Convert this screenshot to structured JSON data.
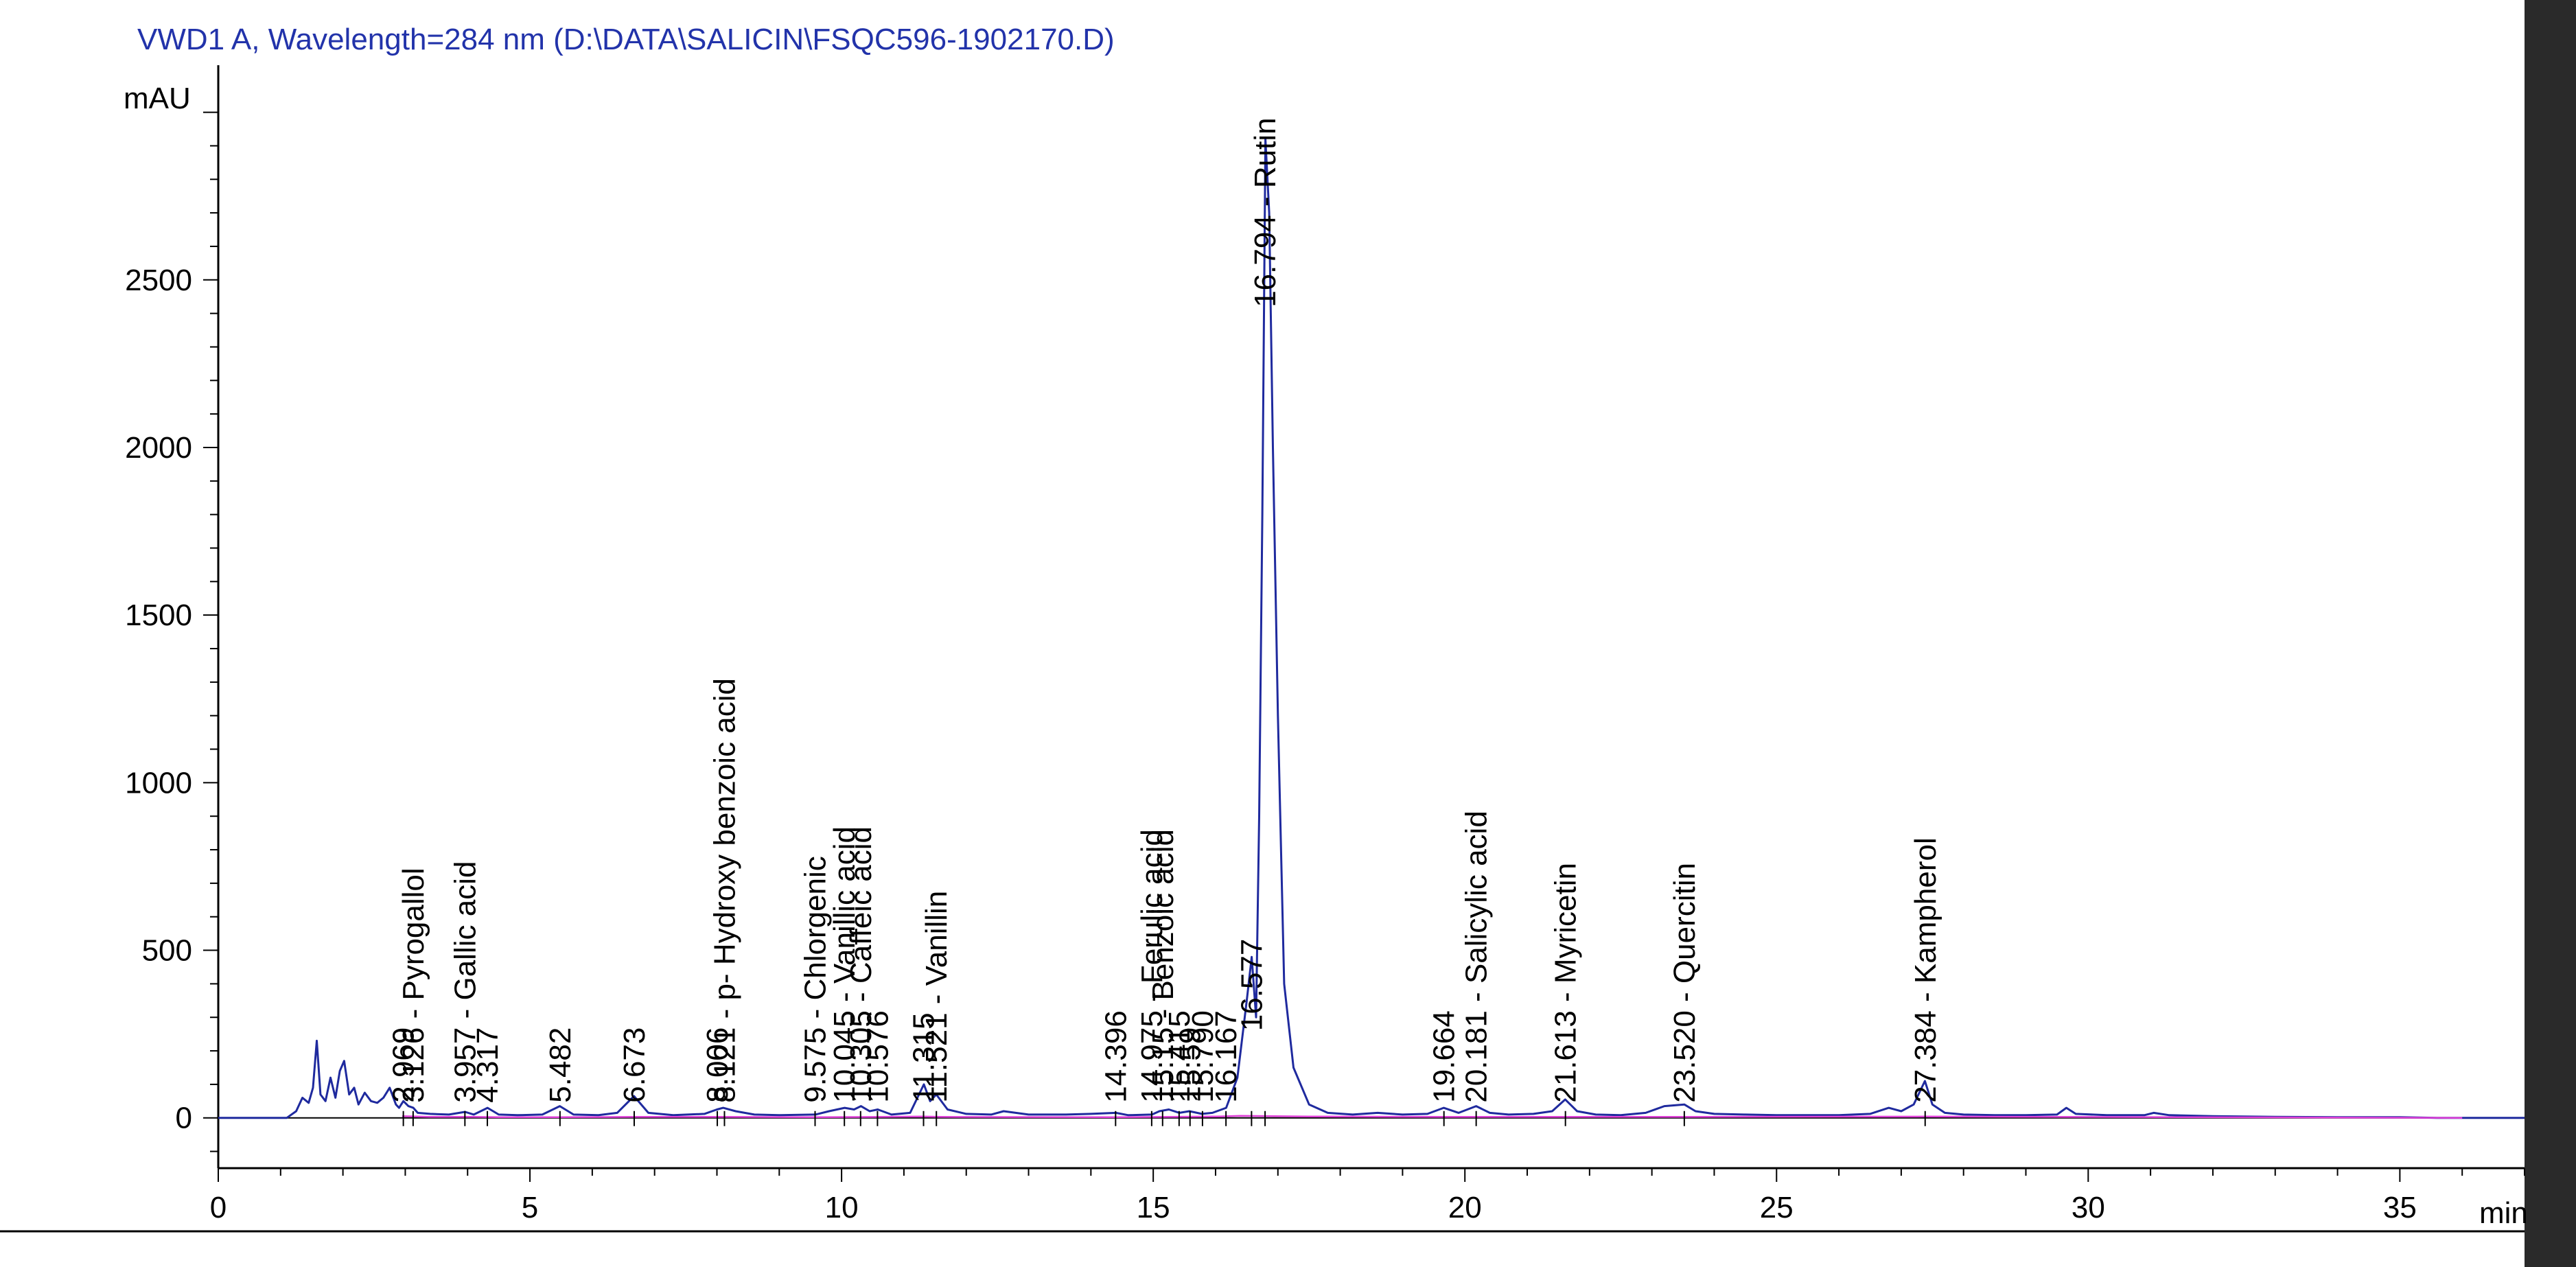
{
  "chart_data": {
    "type": "line",
    "title": "VWD1 A, Wavelength=284 nm (D:\\DATA\\SALICIN\\FSQC596-1902170.D)",
    "xlabel": "min",
    "ylabel": "mAU",
    "xlim": [
      0,
      37
    ],
    "ylim": [
      -150,
      3120
    ],
    "x_ticks": [
      0,
      5,
      10,
      15,
      20,
      25,
      30,
      35
    ],
    "y_ticks": [
      0,
      500,
      1000,
      1500,
      2000,
      2500
    ],
    "x_tick_labels": [
      "0",
      "5",
      "10",
      "15",
      "20",
      "25",
      "30",
      "35"
    ],
    "y_tick_labels": [
      "0",
      "500",
      "1000",
      "1500",
      "2000",
      "2500"
    ],
    "grid": false,
    "series": [
      {
        "color": "#1f2a9e",
        "x": [
          0.0,
          1.1,
          1.25,
          1.35,
          1.45,
          1.52,
          1.58,
          1.64,
          1.72,
          1.8,
          1.88,
          1.95,
          2.02,
          2.1,
          2.18,
          2.25,
          2.35,
          2.45,
          2.55,
          2.65,
          2.75,
          2.85,
          2.9,
          2.97,
          3.05,
          3.13,
          3.2,
          3.4,
          3.7,
          3.96,
          4.1,
          4.32,
          4.5,
          4.8,
          5.2,
          5.48,
          5.7,
          6.1,
          6.4,
          6.67,
          6.9,
          7.3,
          7.8,
          8.0,
          8.1,
          8.3,
          8.6,
          9.0,
          9.58,
          9.8,
          10.05,
          10.2,
          10.31,
          10.45,
          10.58,
          10.8,
          11.1,
          11.32,
          11.42,
          11.52,
          11.7,
          12.0,
          12.4,
          12.6,
          13.0,
          13.6,
          14.0,
          14.4,
          14.6,
          14.98,
          15.1,
          15.25,
          15.42,
          15.58,
          15.78,
          15.95,
          16.17,
          16.35,
          16.5,
          16.58,
          16.65,
          16.7,
          16.75,
          16.8,
          16.86,
          16.92,
          17.0,
          17.1,
          17.25,
          17.5,
          17.8,
          18.2,
          18.6,
          19.0,
          19.4,
          19.66,
          19.9,
          20.18,
          20.4,
          20.7,
          21.1,
          21.4,
          21.61,
          21.8,
          22.1,
          22.5,
          22.9,
          23.2,
          23.52,
          23.7,
          24.0,
          24.5,
          25.0,
          25.5,
          26.0,
          26.5,
          26.8,
          27.0,
          27.2,
          27.38,
          27.5,
          27.7,
          28.0,
          28.5,
          29.0,
          29.5,
          29.65,
          29.8,
          30.3,
          30.9,
          31.05,
          31.3,
          32.0,
          33.0,
          34.0,
          35.0,
          35.6,
          36.0,
          37.0
        ],
        "y": [
          0,
          0,
          20,
          60,
          45,
          90,
          230,
          70,
          50,
          120,
          60,
          140,
          170,
          70,
          90,
          40,
          75,
          50,
          45,
          60,
          90,
          40,
          30,
          50,
          35,
          30,
          15,
          12,
          10,
          18,
          10,
          30,
          10,
          8,
          10,
          35,
          10,
          8,
          15,
          65,
          15,
          8,
          12,
          25,
          30,
          20,
          10,
          8,
          10,
          20,
          30,
          25,
          35,
          20,
          25,
          10,
          15,
          100,
          50,
          70,
          25,
          12,
          10,
          20,
          10,
          10,
          12,
          15,
          8,
          10,
          20,
          25,
          15,
          20,
          12,
          15,
          30,
          120,
          350,
          480,
          300,
          900,
          1800,
          2920,
          2700,
          2000,
          1200,
          400,
          150,
          40,
          15,
          10,
          15,
          10,
          12,
          30,
          15,
          35,
          15,
          10,
          12,
          20,
          55,
          20,
          10,
          8,
          15,
          35,
          40,
          20,
          12,
          10,
          8,
          8,
          8,
          12,
          30,
          20,
          40,
          110,
          40,
          15,
          10,
          8,
          8,
          10,
          30,
          12,
          8,
          8,
          15,
          8,
          5,
          3,
          2,
          2,
          0,
          0,
          0
        ]
      },
      {
        "color": "#e040d8",
        "x": [
          2.95,
          3.4,
          4.1,
          4.5,
          5.4,
          6.7,
          8.1,
          9.6,
          10.6,
          11.3,
          11.6,
          14.4,
          16.0,
          16.4,
          17.6,
          19.66,
          21.61,
          23.52,
          27.38,
          36.0
        ],
        "y": [
          5,
          3,
          3,
          2,
          2,
          3,
          3,
          2,
          3,
          4,
          3,
          2,
          4,
          6,
          4,
          3,
          3,
          3,
          4,
          0
        ]
      }
    ],
    "peak_labels": [
      {
        "rt": 2.969,
        "text": "2.969"
      },
      {
        "rt": 3.126,
        "text": "3.126 - Pyrogallol"
      },
      {
        "rt": 3.957,
        "text": "3.957 - Gallic acid"
      },
      {
        "rt": 4.317,
        "text": "4.317"
      },
      {
        "rt": 5.482,
        "text": "5.482"
      },
      {
        "rt": 6.673,
        "text": "6.673"
      },
      {
        "rt": 8.006,
        "text": "8.006"
      },
      {
        "rt": 8.121,
        "text": "8.121 - p- Hydroxy benzoic acid"
      },
      {
        "rt": 9.575,
        "text": "9.575 - Chlorgenic"
      },
      {
        "rt": 10.045,
        "text": "10.045 - Vanillic acid"
      },
      {
        "rt": 10.305,
        "text": "10.305 - Caffeic acid"
      },
      {
        "rt": 10.576,
        "text": "10.576"
      },
      {
        "rt": 11.315,
        "text": "11.315"
      },
      {
        "rt": 11.521,
        "text": "11.521 - Vanillin"
      },
      {
        "rt": 14.396,
        "text": "14.396"
      },
      {
        "rt": 14.975,
        "text": "14.975 - Ferulic acid"
      },
      {
        "rt": 15.15,
        "text": "15.15 - Benzoic acid"
      },
      {
        "rt": 15.415,
        "text": "15.415"
      },
      {
        "rt": 15.59,
        "text": "15.59"
      },
      {
        "rt": 15.79,
        "text": "15.790"
      },
      {
        "rt": 16.167,
        "text": "16.167"
      },
      {
        "rt": 16.577,
        "text": "16.577"
      },
      {
        "rt": 16.794,
        "text": "16.794 - Rutin"
      },
      {
        "rt": 19.664,
        "text": "19.664"
      },
      {
        "rt": 20.181,
        "text": "20.181 - Salicylic acid"
      },
      {
        "rt": 21.613,
        "text": "21.613 - Myricetin"
      },
      {
        "rt": 23.52,
        "text": "23.520 - Quercitin"
      },
      {
        "rt": 27.384,
        "text": "27.384 - Kampherol"
      }
    ]
  }
}
